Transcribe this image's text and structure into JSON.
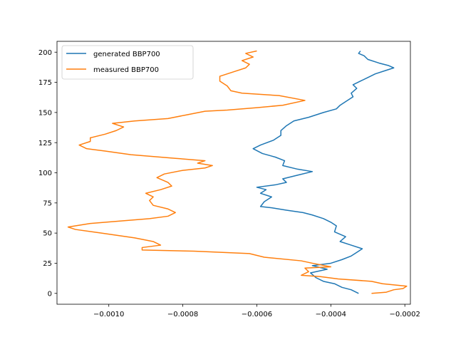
{
  "chart_data": {
    "type": "line",
    "y_inverted": true,
    "xlim": [
      -0.00114,
      -0.000185
    ],
    "ylim": [
      209,
      -9
    ],
    "x_ticks": [
      -0.001,
      -0.0008,
      -0.0006,
      -0.0004,
      -0.0002
    ],
    "x_tick_labels": [
      "−0.0010",
      "−0.0008",
      "−0.0006",
      "−0.0004",
      "−0.0002"
    ],
    "y_ticks": [
      0,
      25,
      50,
      75,
      100,
      125,
      150,
      175,
      200
    ],
    "y_tick_labels": [
      "0",
      "25",
      "50",
      "75",
      "100",
      "125",
      "150",
      "175",
      "200"
    ],
    "legend_position": "upper-left",
    "grid": false,
    "series": [
      {
        "name": "generated BBP700",
        "color": "#1f77b4",
        "points": [
          [
            -0.000325,
            0
          ],
          [
            -0.000345,
            3
          ],
          [
            -0.00037,
            5
          ],
          [
            -0.00039,
            8
          ],
          [
            -0.00042,
            10
          ],
          [
            -0.00044,
            13
          ],
          [
            -0.000455,
            17
          ],
          [
            -0.00041,
            20
          ],
          [
            -0.00045,
            23
          ],
          [
            -0.0004,
            25
          ],
          [
            -0.00037,
            28
          ],
          [
            -0.000345,
            31
          ],
          [
            -0.00033,
            34
          ],
          [
            -0.000315,
            37
          ],
          [
            -0.000345,
            40
          ],
          [
            -0.000375,
            43
          ],
          [
            -0.00036,
            47
          ],
          [
            -0.00039,
            51
          ],
          [
            -0.000385,
            56
          ],
          [
            -0.0004,
            59
          ],
          [
            -0.00042,
            62
          ],
          [
            -0.00045,
            65
          ],
          [
            -0.000475,
            67
          ],
          [
            -0.00052,
            69
          ],
          [
            -0.00056,
            71
          ],
          [
            -0.00059,
            72
          ],
          [
            -0.00058,
            76
          ],
          [
            -0.00056,
            80
          ],
          [
            -0.00059,
            83
          ],
          [
            -0.000575,
            86
          ],
          [
            -0.0006,
            88
          ],
          [
            -0.00055,
            90
          ],
          [
            -0.00052,
            92
          ],
          [
            -0.00053,
            95
          ],
          [
            -0.00049,
            98
          ],
          [
            -0.00045,
            101
          ],
          [
            -0.00049,
            103
          ],
          [
            -0.00053,
            106
          ],
          [
            -0.000525,
            110
          ],
          [
            -0.00055,
            113
          ],
          [
            -0.000585,
            116
          ],
          [
            -0.00061,
            120
          ],
          [
            -0.00059,
            123
          ],
          [
            -0.000555,
            127
          ],
          [
            -0.000535,
            131
          ],
          [
            -0.000535,
            135
          ],
          [
            -0.00052,
            139
          ],
          [
            -0.0005,
            143
          ],
          [
            -0.00046,
            146
          ],
          [
            -0.00042,
            150
          ],
          [
            -0.000385,
            153
          ],
          [
            -0.000375,
            156
          ],
          [
            -0.00036,
            159
          ],
          [
            -0.00034,
            163
          ],
          [
            -0.000345,
            166
          ],
          [
            -0.00033,
            170
          ],
          [
            -0.00034,
            173
          ],
          [
            -0.00032,
            176
          ],
          [
            -0.0003,
            179
          ],
          [
            -0.00028,
            182
          ],
          [
            -0.00025,
            185
          ],
          [
            -0.00023,
            187
          ],
          [
            -0.000245,
            189
          ],
          [
            -0.00027,
            191
          ],
          [
            -0.0003,
            194
          ],
          [
            -0.00031,
            197
          ],
          [
            -0.000325,
            199
          ],
          [
            -0.00032,
            201
          ]
        ]
      },
      {
        "name": "measured BBP700",
        "color": "#ff7f0e",
        "points": [
          [
            -0.00029,
            0
          ],
          [
            -0.00025,
            1
          ],
          [
            -0.00023,
            3
          ],
          [
            -0.000205,
            4
          ],
          [
            -0.000195,
            6
          ],
          [
            -0.00026,
            8
          ],
          [
            -0.00029,
            10
          ],
          [
            -0.00038,
            12
          ],
          [
            -0.00043,
            14
          ],
          [
            -0.00048,
            15
          ],
          [
            -0.00046,
            18
          ],
          [
            -0.00047,
            21
          ],
          [
            -0.0004,
            22
          ],
          [
            -0.00045,
            25
          ],
          [
            -0.00048,
            27
          ],
          [
            -0.00058,
            30
          ],
          [
            -0.00062,
            33
          ],
          [
            -0.00077,
            35
          ],
          [
            -0.00091,
            36
          ],
          [
            -0.00091,
            38
          ],
          [
            -0.00086,
            40
          ],
          [
            -0.00088,
            43
          ],
          [
            -0.00093,
            46
          ],
          [
            -0.00102,
            50
          ],
          [
            -0.00109,
            53
          ],
          [
            -0.00111,
            55
          ],
          [
            -0.00105,
            58
          ],
          [
            -0.00097,
            60
          ],
          [
            -0.00089,
            62
          ],
          [
            -0.00084,
            64
          ],
          [
            -0.00082,
            67
          ],
          [
            -0.00084,
            70
          ],
          [
            -0.00088,
            73
          ],
          [
            -0.00089,
            77
          ],
          [
            -0.00088,
            80
          ],
          [
            -0.0009,
            83
          ],
          [
            -0.00086,
            86
          ],
          [
            -0.00083,
            89
          ],
          [
            -0.00084,
            92
          ],
          [
            -0.00087,
            96
          ],
          [
            -0.00085,
            99
          ],
          [
            -0.0008,
            102
          ],
          [
            -0.00074,
            104
          ],
          [
            -0.00072,
            106
          ],
          [
            -0.00076,
            108
          ],
          [
            -0.00074,
            110
          ],
          [
            -0.00082,
            112
          ],
          [
            -0.00094,
            115
          ],
          [
            -0.00101,
            118
          ],
          [
            -0.00106,
            120
          ],
          [
            -0.00108,
            123
          ],
          [
            -0.00105,
            126
          ],
          [
            -0.00105,
            129
          ],
          [
            -0.00101,
            132
          ],
          [
            -0.00098,
            135
          ],
          [
            -0.00096,
            138
          ],
          [
            -0.00099,
            141
          ],
          [
            -0.00093,
            143
          ],
          [
            -0.00084,
            145
          ],
          [
            -0.00079,
            148
          ],
          [
            -0.00074,
            151
          ],
          [
            -0.00068,
            152
          ],
          [
            -0.0006,
            154
          ],
          [
            -0.00053,
            156
          ],
          [
            -0.00047,
            160
          ],
          [
            -0.00054,
            164
          ],
          [
            -0.00064,
            166
          ],
          [
            -0.00067,
            168
          ],
          [
            -0.00068,
            172
          ],
          [
            -0.0007,
            176
          ],
          [
            -0.0007,
            180
          ],
          [
            -0.00066,
            184
          ],
          [
            -0.00063,
            187
          ],
          [
            -0.00062,
            190
          ],
          [
            -0.00064,
            193
          ],
          [
            -0.00061,
            196
          ],
          [
            -0.00063,
            199
          ],
          [
            -0.0006,
            201
          ]
        ]
      }
    ]
  }
}
